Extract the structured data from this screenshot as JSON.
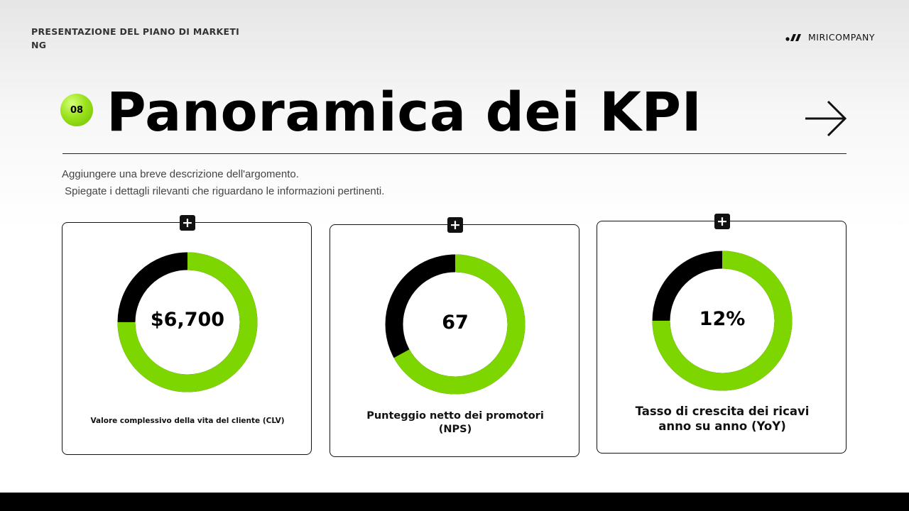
{
  "header": {
    "presentation_title": "PRESENTAZIONE DEL PIANO DI MARKETING",
    "brand_name": "MIRICOMPANY"
  },
  "slide": {
    "number": "08",
    "title": "Panoramica dei KPI",
    "description_line1": "Aggiungere una breve descrizione dell'argomento.",
    "description_line2": " Spiegate i dettagli rilevanti che riguardano le informazioni pertinenti."
  },
  "kpis": [
    {
      "value": "$6,700",
      "label": "Valore complessivo della vita del cliente (CLV)",
      "green_fraction": 0.75
    },
    {
      "value": "67",
      "label": "Punteggio netto dei promotori (NPS)",
      "green_fraction": 0.67
    },
    {
      "value": "12%",
      "label": "Tasso di crescita dei ricavi anno su anno (YoY)",
      "green_fraction": 0.75
    }
  ],
  "colors": {
    "accent_green": "#7ed600",
    "dark": "#000000",
    "badge_green": "#9be21c"
  },
  "icons": {
    "card_add": "plus-icon",
    "next": "arrow-right-icon",
    "brand": "brand-logo-icon"
  }
}
